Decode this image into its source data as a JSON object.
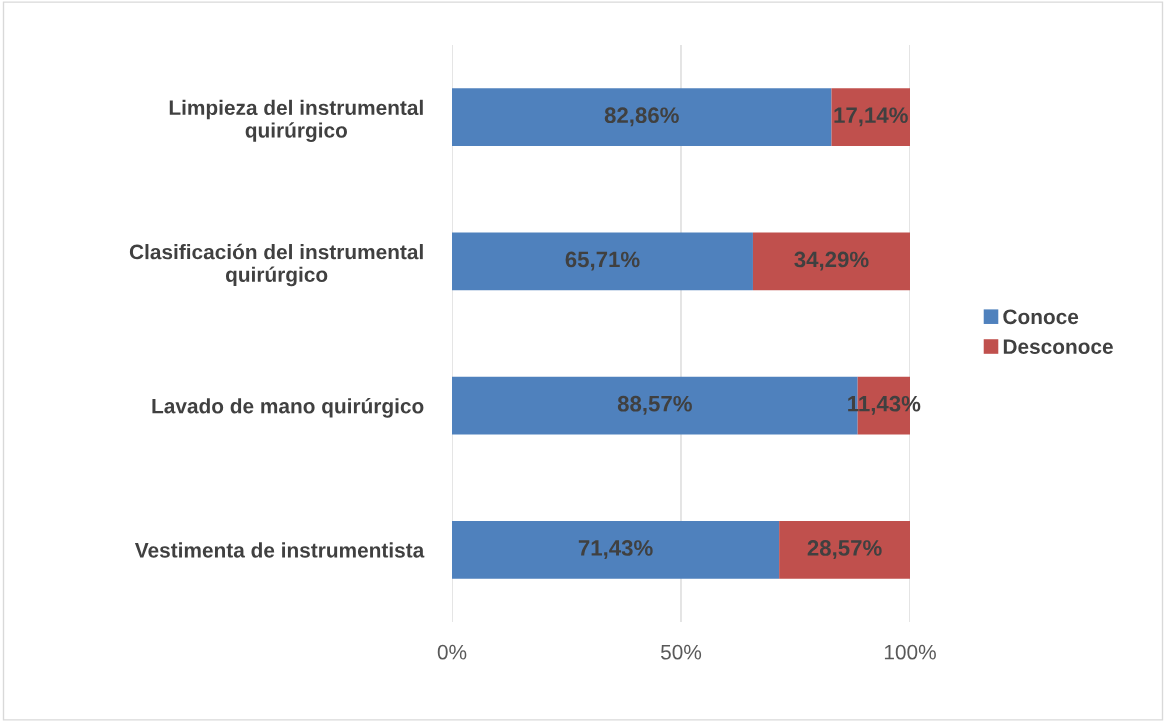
{
  "chart_data": {
    "type": "bar",
    "orientation": "horizontal",
    "stacked": true,
    "categories": [
      "Limpieza del instrumental\nquirúrgico",
      "Clasificación del instrumental\nquirúrgico",
      "Lavado de mano quirúrgico",
      "Vestimenta de instrumentista"
    ],
    "series": [
      {
        "name": "Conoce",
        "color": "#4f81bd",
        "values": [
          82.86,
          65.71,
          88.57,
          71.43
        ],
        "value_labels": [
          "82,86%",
          "65,71%",
          "88,57%",
          "71,43%"
        ]
      },
      {
        "name": "Desconoce",
        "color": "#c0504d",
        "values": [
          17.14,
          34.29,
          11.43,
          28.57
        ],
        "value_labels": [
          "17,14%",
          "34,29%",
          "11,43%",
          "28,57%"
        ]
      }
    ],
    "xlim": [
      0,
      100
    ],
    "xticks": [
      {
        "value": 0,
        "label": "0%"
      },
      {
        "value": 50,
        "label": "50%"
      },
      {
        "value": 100,
        "label": "100%"
      }
    ],
    "grid": "x",
    "legend": "right"
  }
}
